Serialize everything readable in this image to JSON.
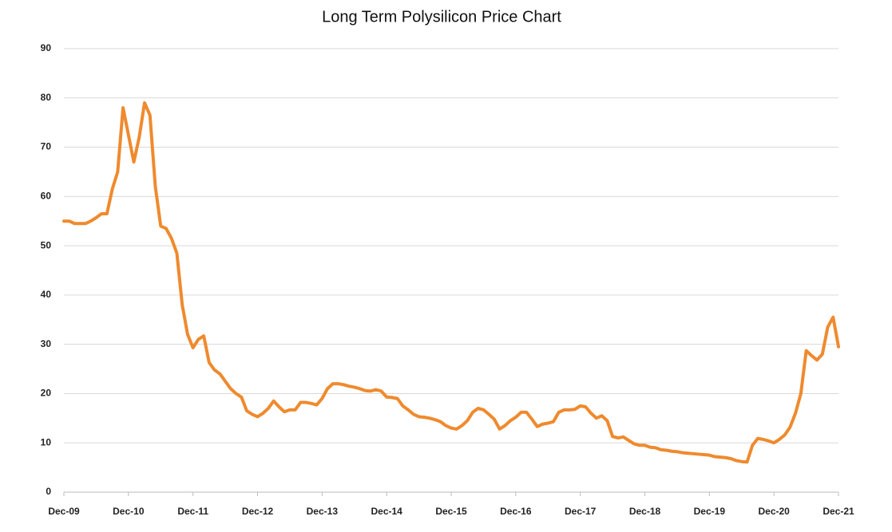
{
  "chart_data": {
    "type": "line",
    "title": "Long Term Polysilicon Price Chart",
    "categories": [
      "Dec-09",
      null,
      null,
      null,
      null,
      null,
      null,
      null,
      null,
      null,
      null,
      null,
      "Dec-10",
      null,
      null,
      null,
      null,
      null,
      null,
      null,
      null,
      null,
      null,
      null,
      "Dec-11",
      null,
      null,
      null,
      null,
      null,
      null,
      null,
      null,
      null,
      null,
      null,
      "Dec-12",
      null,
      null,
      null,
      null,
      null,
      null,
      null,
      null,
      null,
      null,
      null,
      "Dec-13",
      null,
      null,
      null,
      null,
      null,
      null,
      null,
      null,
      null,
      null,
      null,
      "Dec-14",
      null,
      null,
      null,
      null,
      null,
      null,
      null,
      null,
      null,
      null,
      null,
      "Dec-15",
      null,
      null,
      null,
      null,
      null,
      null,
      null,
      null,
      null,
      null,
      null,
      "Dec-16",
      null,
      null,
      null,
      null,
      null,
      null,
      null,
      null,
      null,
      null,
      null,
      "Dec-17",
      null,
      null,
      null,
      null,
      null,
      null,
      null,
      null,
      null,
      null,
      null,
      "Dec-18",
      null,
      null,
      null,
      null,
      null,
      null,
      null,
      null,
      null,
      null,
      null,
      "Dec-19",
      null,
      null,
      null,
      null,
      null,
      null,
      null,
      null,
      null,
      null,
      null,
      "Dec-20",
      null,
      null,
      null,
      null,
      null,
      null,
      null,
      null,
      null,
      null,
      null,
      "Dec-21"
    ],
    "values": [
      55,
      55,
      54.5,
      54.5,
      54.5,
      55,
      55.7,
      56.5,
      56.5,
      61.5,
      65,
      78,
      72.5,
      67,
      72,
      79,
      76.5,
      62,
      54,
      53.5,
      51.5,
      48.5,
      38,
      32,
      29.3,
      31,
      31.7,
      26.3,
      24.8,
      24,
      22.5,
      21,
      20,
      19.3,
      16.5,
      15.8,
      15.3,
      16,
      17,
      18.5,
      17.3,
      16.3,
      16.7,
      16.7,
      18.2,
      18.2,
      18,
      17.7,
      19,
      21,
      22,
      22,
      21.8,
      21.5,
      21.3,
      21,
      20.6,
      20.5,
      20.8,
      20.5,
      19.3,
      19.2,
      19,
      17.5,
      16.7,
      15.8,
      15.3,
      15.2,
      15,
      14.7,
      14.3,
      13.5,
      13,
      12.8,
      13.5,
      14.5,
      16.2,
      17,
      16.7,
      15.8,
      14.8,
      12.8,
      13.5,
      14.5,
      15.2,
      16.2,
      16.2,
      14.8,
      13.3,
      13.8,
      14,
      14.3,
      16.2,
      16.7,
      16.7,
      16.8,
      17.5,
      17.3,
      16,
      15,
      15.5,
      14.5,
      11.3,
      11,
      11.2,
      10.5,
      9.8,
      9.5,
      9.5,
      9.1,
      9,
      8.6,
      8.5,
      8.3,
      8.2,
      8,
      7.9,
      7.8,
      7.7,
      7.6,
      7.5,
      7.2,
      7.1,
      7,
      6.8,
      6.4,
      6.2,
      6.1,
      9.5,
      10.9,
      10.7,
      10.4,
      10,
      10.7,
      11.6,
      13.2,
      16,
      20,
      28.7,
      27.7,
      26.8,
      28,
      33.5,
      35.5,
      29.5
    ],
    "color": "#ef8a2e",
    "ylim": [
      0,
      90
    ],
    "yticks": [
      0,
      10,
      20,
      30,
      40,
      50,
      60,
      70,
      80,
      90
    ],
    "grid": true
  }
}
